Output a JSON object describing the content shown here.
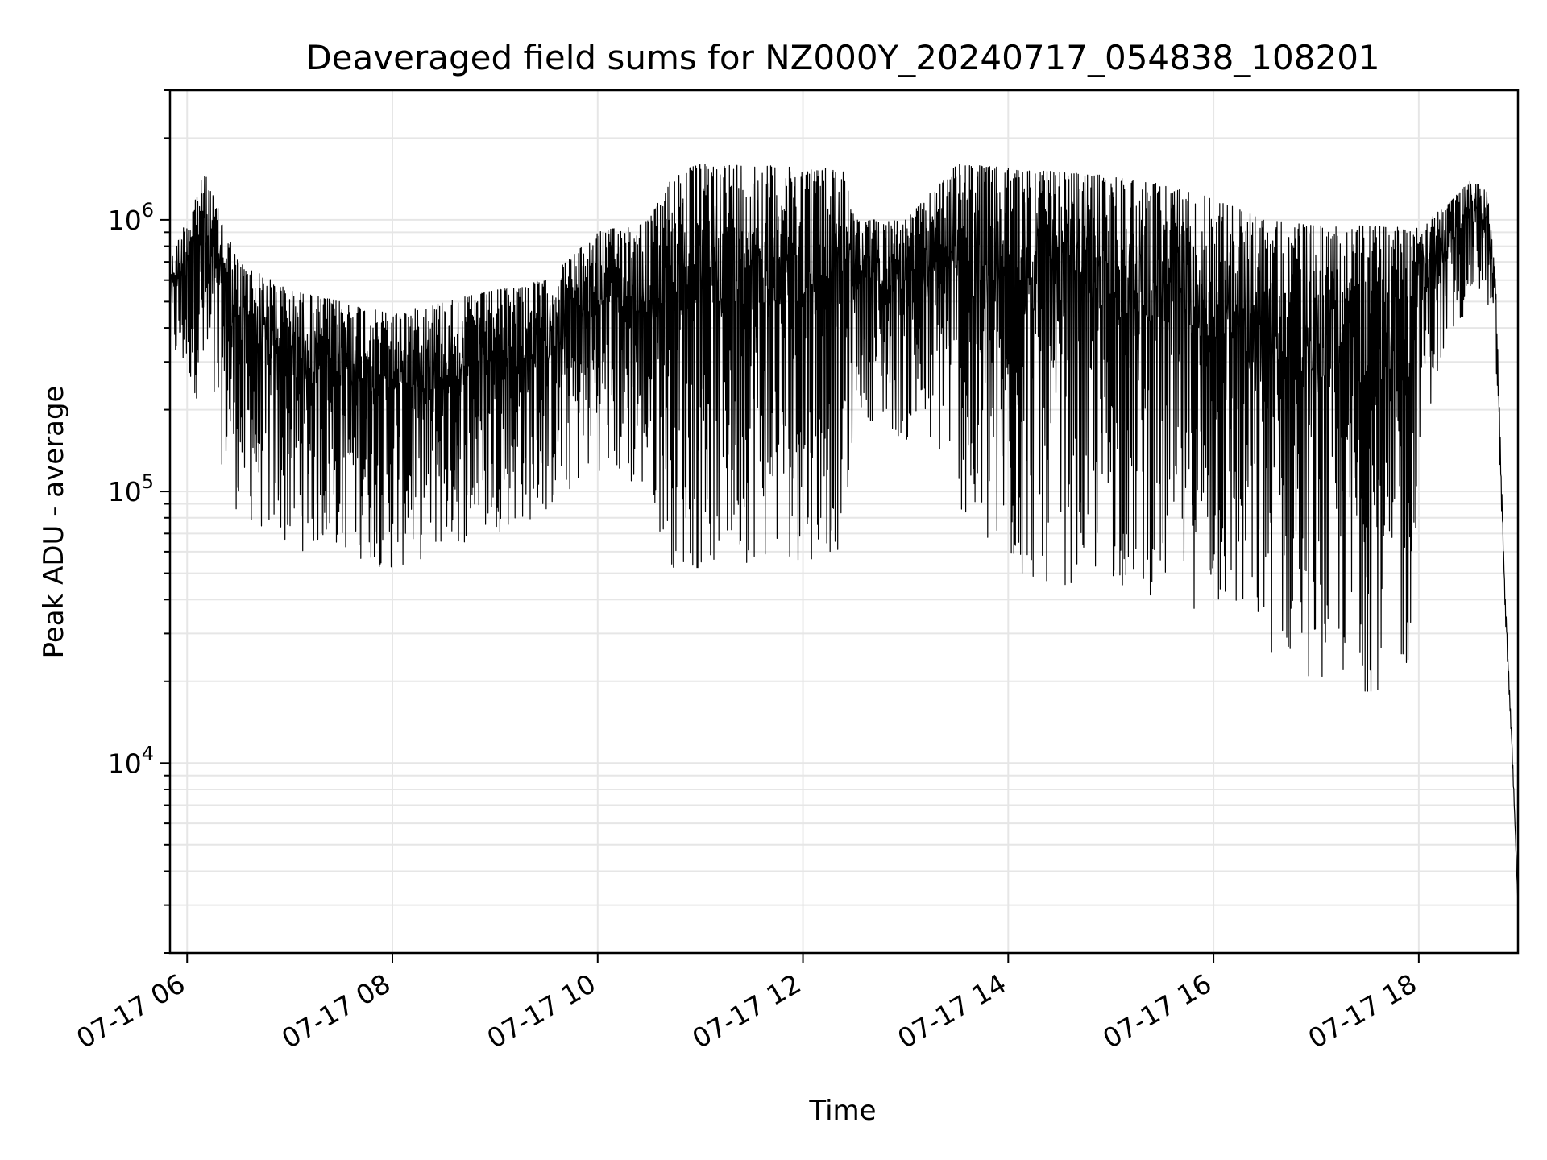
{
  "chart_data": {
    "type": "line",
    "title": "Deaveraged field sums for NZ000Y_20240717_054838_108201",
    "xlabel": "Time",
    "ylabel": "Peak ADU - average",
    "yscale": "log",
    "ylim": [
      2000,
      3000000
    ],
    "xlim": [
      "2024-07-17 05:50",
      "2024-07-17 18:58"
    ],
    "grid": true,
    "line_color": "#000000",
    "x_ticks": [
      {
        "t": "2024-07-17 06:00",
        "label": "07-17 06"
      },
      {
        "t": "2024-07-17 08:00",
        "label": "07-17 08"
      },
      {
        "t": "2024-07-17 10:00",
        "label": "07-17 10"
      },
      {
        "t": "2024-07-17 12:00",
        "label": "07-17 12"
      },
      {
        "t": "2024-07-17 14:00",
        "label": "07-17 14"
      },
      {
        "t": "2024-07-17 16:00",
        "label": "07-17 16"
      },
      {
        "t": "2024-07-17 18:00",
        "label": "07-17 18"
      }
    ],
    "y_ticks": [
      {
        "value": 10000,
        "base": "10",
        "exp": "4"
      },
      {
        "value": 100000,
        "base": "10",
        "exp": "5"
      },
      {
        "value": 1000000,
        "base": "10",
        "exp": "6"
      }
    ],
    "series": [
      {
        "x": [
          "2024-07-17 05:50",
          "2024-07-17 06:10",
          "2024-07-17 06:30",
          "2024-07-17 07:00",
          "2024-07-17 07:30",
          "2024-07-17 08:00",
          "2024-07-17 08:30",
          "2024-07-17 09:00",
          "2024-07-17 09:30",
          "2024-07-17 10:00",
          "2024-07-17 10:30",
          "2024-07-17 10:45",
          "2024-07-17 11:00",
          "2024-07-17 11:30",
          "2024-07-17 12:00",
          "2024-07-17 12:25",
          "2024-07-17 12:30",
          "2024-07-17 13:00",
          "2024-07-17 13:30",
          "2024-07-17 13:35",
          "2024-07-17 14:00",
          "2024-07-17 14:30",
          "2024-07-17 15:00",
          "2024-07-17 15:30",
          "2024-07-17 16:00",
          "2024-07-17 16:30",
          "2024-07-17 17:00",
          "2024-07-17 17:30",
          "2024-07-17 17:55",
          "2024-07-17 18:00",
          "2024-07-17 18:15",
          "2024-07-17 18:30",
          "2024-07-17 18:40",
          "2024-07-17 18:45",
          "2024-07-17 18:50",
          "2024-07-17 18:55",
          "2024-07-17 18:58"
        ],
        "upper": [
          700000,
          1500000,
          700000,
          550000,
          500000,
          450000,
          500000,
          550000,
          600000,
          900000,
          1000000,
          1500000,
          1600000,
          1600000,
          1550000,
          1550000,
          1000000,
          1000000,
          1600000,
          1600000,
          1550000,
          1500000,
          1450000,
          1350000,
          1200000,
          1000000,
          950000,
          950000,
          950000,
          1000000,
          1100000,
          1400000,
          1300000,
          600000,
          50000,
          10000,
          3000
        ],
        "lower": [
          300000,
          200000,
          80000,
          60000,
          60000,
          50000,
          60000,
          70000,
          80000,
          120000,
          90000,
          50000,
          50000,
          55000,
          55000,
          60000,
          200000,
          150000,
          120000,
          60000,
          45000,
          45000,
          45000,
          40000,
          35000,
          25000,
          20000,
          18000,
          20000,
          150000,
          300000,
          500000,
          500000,
          300000,
          40000,
          9000,
          3000
        ]
      }
    ]
  }
}
